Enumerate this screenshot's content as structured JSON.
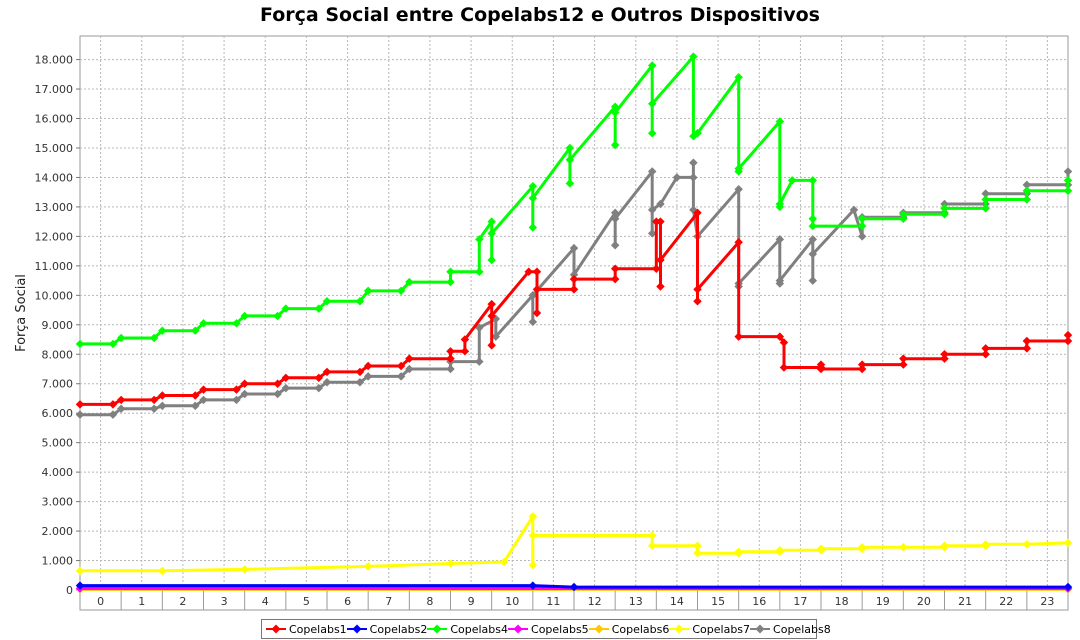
{
  "chart_data": {
    "type": "line",
    "title": "Força Social entre Copelabs12 e Outros Dispositivos",
    "xlabel": "",
    "ylabel": "Força Social",
    "x_categories": [
      "0",
      "1",
      "2",
      "3",
      "4",
      "5",
      "6",
      "7",
      "8",
      "9",
      "10",
      "11",
      "12",
      "13",
      "14",
      "15",
      "16",
      "17",
      "18",
      "19",
      "20",
      "21",
      "22",
      "23"
    ],
    "xlim": [
      -0.5,
      23.5
    ],
    "ylim": [
      0,
      18.8
    ],
    "y_ticks": [
      0,
      1,
      2,
      3,
      4,
      5,
      6,
      7,
      8,
      9,
      10,
      11,
      12,
      13,
      14,
      15,
      16,
      17,
      18
    ],
    "y_tick_labels": [
      "0",
      "1.000",
      "2.000",
      "3.000",
      "4.000",
      "5.000",
      "6.000",
      "7.000",
      "8.000",
      "9.000",
      "10.000",
      "11.000",
      "12.000",
      "13.000",
      "14.000",
      "15.000",
      "16.000",
      "17.000",
      "18.000"
    ],
    "grid": true,
    "legend_position": "bottom",
    "series": [
      {
        "name": "Copelabs1",
        "color": "#ff0000",
        "points": [
          [
            -0.5,
            6.3
          ],
          [
            0.3,
            6.3
          ],
          [
            0.5,
            6.45
          ],
          [
            1.3,
            6.45
          ],
          [
            1.5,
            6.6
          ],
          [
            2.3,
            6.6
          ],
          [
            2.5,
            6.8
          ],
          [
            3.3,
            6.8
          ],
          [
            3.5,
            7.0
          ],
          [
            4.3,
            7.0
          ],
          [
            4.5,
            7.2
          ],
          [
            5.3,
            7.2
          ],
          [
            5.5,
            7.4
          ],
          [
            6.3,
            7.4
          ],
          [
            6.5,
            7.6
          ],
          [
            7.3,
            7.6
          ],
          [
            7.5,
            7.85
          ],
          [
            8.5,
            7.85
          ],
          [
            8.5,
            8.1
          ],
          [
            8.85,
            8.1
          ],
          [
            8.85,
            8.5
          ],
          [
            9.5,
            9.7
          ],
          [
            9.5,
            8.3
          ],
          [
            9.5,
            9.3
          ],
          [
            10.4,
            10.8
          ],
          [
            10.6,
            10.8
          ],
          [
            10.6,
            9.4
          ],
          [
            10.6,
            10.2
          ],
          [
            11.5,
            10.2
          ],
          [
            11.5,
            10.55
          ],
          [
            12.5,
            10.55
          ],
          [
            12.5,
            10.9
          ],
          [
            13.5,
            10.9
          ],
          [
            13.5,
            12.5
          ],
          [
            13.6,
            12.5
          ],
          [
            13.6,
            10.3
          ],
          [
            13.6,
            11.2
          ],
          [
            14.5,
            12.8
          ],
          [
            14.5,
            9.8
          ],
          [
            14.5,
            10.2
          ],
          [
            15.5,
            11.8
          ],
          [
            15.5,
            8.6
          ],
          [
            16.5,
            8.6
          ],
          [
            16.6,
            8.4
          ],
          [
            16.6,
            7.55
          ],
          [
            17.5,
            7.55
          ],
          [
            17.5,
            7.65
          ],
          [
            17.5,
            7.5
          ],
          [
            18.5,
            7.5
          ],
          [
            18.5,
            7.65
          ],
          [
            19.5,
            7.65
          ],
          [
            19.5,
            7.85
          ],
          [
            20.5,
            7.85
          ],
          [
            20.5,
            8.0
          ],
          [
            21.5,
            8.0
          ],
          [
            21.5,
            8.2
          ],
          [
            22.5,
            8.2
          ],
          [
            22.5,
            8.45
          ],
          [
            23.5,
            8.45
          ],
          [
            23.5,
            8.65
          ]
        ]
      },
      {
        "name": "Copelabs2",
        "color": "#0000ff",
        "points": [
          [
            -0.5,
            0.15
          ],
          [
            10.5,
            0.15
          ],
          [
            11.5,
            0.1
          ],
          [
            23.5,
            0.1
          ]
        ]
      },
      {
        "name": "Copelabs4",
        "color": "#00ff00",
        "points": [
          [
            -0.5,
            8.35
          ],
          [
            0.3,
            8.35
          ],
          [
            0.5,
            8.55
          ],
          [
            1.3,
            8.55
          ],
          [
            1.5,
            8.8
          ],
          [
            2.3,
            8.8
          ],
          [
            2.5,
            9.05
          ],
          [
            3.3,
            9.05
          ],
          [
            3.5,
            9.3
          ],
          [
            4.3,
            9.3
          ],
          [
            4.5,
            9.55
          ],
          [
            5.3,
            9.55
          ],
          [
            5.5,
            9.8
          ],
          [
            6.3,
            9.8
          ],
          [
            6.5,
            10.15
          ],
          [
            7.3,
            10.15
          ],
          [
            7.5,
            10.45
          ],
          [
            8.5,
            10.45
          ],
          [
            8.5,
            10.8
          ],
          [
            9.2,
            10.8
          ],
          [
            9.2,
            11.9
          ],
          [
            9.5,
            12.5
          ],
          [
            9.5,
            11.2
          ],
          [
            9.5,
            12.1
          ],
          [
            10.5,
            13.7
          ],
          [
            10.5,
            12.3
          ],
          [
            10.5,
            13.3
          ],
          [
            11.4,
            15.0
          ],
          [
            11.4,
            13.8
          ],
          [
            11.4,
            14.6
          ],
          [
            12.5,
            16.4
          ],
          [
            12.5,
            15.1
          ],
          [
            12.5,
            16.2
          ],
          [
            13.4,
            17.8
          ],
          [
            13.4,
            15.5
          ],
          [
            13.4,
            16.5
          ],
          [
            14.4,
            18.1
          ],
          [
            14.4,
            15.4
          ],
          [
            14.5,
            15.5
          ],
          [
            15.5,
            17.4
          ],
          [
            15.5,
            14.2
          ],
          [
            15.5,
            14.3
          ],
          [
            16.5,
            15.9
          ],
          [
            16.5,
            13.0
          ],
          [
            16.5,
            13.1
          ],
          [
            16.8,
            13.9
          ],
          [
            17.3,
            13.9
          ],
          [
            17.3,
            12.6
          ],
          [
            17.3,
            12.35
          ],
          [
            18.5,
            12.35
          ],
          [
            18.5,
            12.6
          ],
          [
            19.5,
            12.6
          ],
          [
            19.5,
            12.75
          ],
          [
            20.5,
            12.75
          ],
          [
            20.5,
            12.95
          ],
          [
            21.5,
            12.95
          ],
          [
            21.5,
            13.25
          ],
          [
            22.5,
            13.25
          ],
          [
            22.5,
            13.55
          ],
          [
            23.5,
            13.55
          ],
          [
            23.5,
            13.9
          ]
        ]
      },
      {
        "name": "Copelabs5",
        "color": "#ff00ff",
        "points": [
          [
            -0.5,
            0.05
          ],
          [
            23.5,
            0.05
          ]
        ]
      },
      {
        "name": "Copelabs6",
        "color": "#ffc800",
        "points": [
          [
            -0.5,
            0.02
          ],
          [
            23.5,
            0.02
          ]
        ]
      },
      {
        "name": "Copelabs7",
        "color": "#ffff00",
        "points": [
          [
            -0.5,
            0.65
          ],
          [
            1.5,
            0.65
          ],
          [
            3.5,
            0.7
          ],
          [
            6.5,
            0.8
          ],
          [
            8.5,
            0.9
          ],
          [
            9.8,
            0.95
          ],
          [
            10.5,
            2.5
          ],
          [
            10.5,
            0.85
          ],
          [
            10.5,
            1.85
          ],
          [
            13.4,
            1.85
          ],
          [
            13.4,
            1.5
          ],
          [
            14.5,
            1.5
          ],
          [
            14.5,
            1.25
          ],
          [
            15.5,
            1.25
          ],
          [
            15.5,
            1.3
          ],
          [
            16.5,
            1.3
          ],
          [
            16.5,
            1.35
          ],
          [
            17.5,
            1.35
          ],
          [
            17.5,
            1.4
          ],
          [
            18.5,
            1.4
          ],
          [
            18.5,
            1.45
          ],
          [
            19.5,
            1.45
          ],
          [
            20.5,
            1.45
          ],
          [
            20.5,
            1.5
          ],
          [
            21.5,
            1.5
          ],
          [
            21.5,
            1.55
          ],
          [
            22.5,
            1.55
          ],
          [
            23.5,
            1.6
          ]
        ]
      },
      {
        "name": "Copelabs8",
        "color": "#808080",
        "points": [
          [
            -0.5,
            5.95
          ],
          [
            0.3,
            5.95
          ],
          [
            0.5,
            6.15
          ],
          [
            1.3,
            6.15
          ],
          [
            1.5,
            6.25
          ],
          [
            2.3,
            6.25
          ],
          [
            2.5,
            6.45
          ],
          [
            3.3,
            6.45
          ],
          [
            3.5,
            6.65
          ],
          [
            4.3,
            6.65
          ],
          [
            4.5,
            6.85
          ],
          [
            5.3,
            6.85
          ],
          [
            5.5,
            7.05
          ],
          [
            6.3,
            7.05
          ],
          [
            6.5,
            7.25
          ],
          [
            7.3,
            7.25
          ],
          [
            7.5,
            7.5
          ],
          [
            8.5,
            7.5
          ],
          [
            8.5,
            7.75
          ],
          [
            9.2,
            7.75
          ],
          [
            9.2,
            8.9
          ],
          [
            9.6,
            9.2
          ],
          [
            9.6,
            8.6
          ],
          [
            10.5,
            10.0
          ],
          [
            10.5,
            9.1
          ],
          [
            10.5,
            10.0
          ],
          [
            11.5,
            11.6
          ],
          [
            11.5,
            10.7
          ],
          [
            12.5,
            12.8
          ],
          [
            12.5,
            11.7
          ],
          [
            12.5,
            12.6
          ],
          [
            13.4,
            14.2
          ],
          [
            13.4,
            12.1
          ],
          [
            13.4,
            12.9
          ],
          [
            13.6,
            13.1
          ],
          [
            14.0,
            14.0
          ],
          [
            14.4,
            14.0
          ],
          [
            14.4,
            14.5
          ],
          [
            14.4,
            12.9
          ],
          [
            14.5,
            12.0
          ],
          [
            15.5,
            13.6
          ],
          [
            15.5,
            10.3
          ],
          [
            15.5,
            10.4
          ],
          [
            16.5,
            11.9
          ],
          [
            16.5,
            10.4
          ],
          [
            16.5,
            10.5
          ],
          [
            17.3,
            11.9
          ],
          [
            17.3,
            10.5
          ],
          [
            17.3,
            11.4
          ],
          [
            18.3,
            12.9
          ],
          [
            18.5,
            12.0
          ],
          [
            18.5,
            12.65
          ],
          [
            19.5,
            12.65
          ],
          [
            19.5,
            12.8
          ],
          [
            20.5,
            12.8
          ],
          [
            20.5,
            13.1
          ],
          [
            21.5,
            13.1
          ],
          [
            21.5,
            13.45
          ],
          [
            22.5,
            13.45
          ],
          [
            22.5,
            13.75
          ],
          [
            23.5,
            13.75
          ],
          [
            23.5,
            14.2
          ]
        ]
      }
    ]
  }
}
